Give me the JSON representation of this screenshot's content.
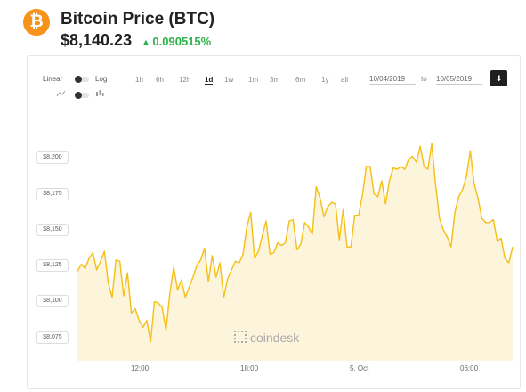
{
  "header": {
    "logo_glyph": "₿",
    "title": "Bitcoin Price (BTC)",
    "price": "$8,140.23",
    "change_arrow": "▲",
    "change": "0.090515%",
    "change_color": "#2db34a",
    "brand_color": "#f7931a"
  },
  "controls": {
    "scale_linear": "Linear",
    "scale_log": "Log",
    "ranges": [
      "1h",
      "6h",
      "12h",
      "1d",
      "1w",
      "1m",
      "3m",
      "6m",
      "1y",
      "all"
    ],
    "active_range": "1d",
    "date_from": "10/04/2019",
    "to_label": "to",
    "date_to": "10/05/2019",
    "download_icon": "download-icon"
  },
  "chart_data": {
    "type": "area",
    "line_color": "#f4c21f",
    "fill_color": "#fdf4dc",
    "y_ticks": [
      "$8,075",
      "$8,100",
      "$8,125",
      "$8,150",
      "$8,175",
      "$8,200"
    ],
    "x_ticks": [
      "12:00",
      "18:00",
      "5. Oct",
      "06:00"
    ],
    "ylim": [
      8060,
      8215
    ],
    "values": [
      8121,
      8126,
      8123,
      8130,
      8134,
      8122,
      8128,
      8135,
      8113,
      8103,
      8129,
      8128,
      8104,
      8120,
      8092,
      8095,
      8087,
      8082,
      8087,
      8072,
      8100,
      8099,
      8096,
      8080,
      8106,
      8124,
      8108,
      8115,
      8103,
      8110,
      8117,
      8125,
      8129,
      8137,
      8114,
      8132,
      8117,
      8127,
      8103,
      8116,
      8122,
      8128,
      8127,
      8133,
      8152,
      8162,
      8130,
      8135,
      8146,
      8156,
      8133,
      8134,
      8141,
      8139,
      8141,
      8156,
      8157,
      8136,
      8140,
      8155,
      8152,
      8147,
      8180,
      8172,
      8159,
      8166,
      8169,
      8168,
      8143,
      8164,
      8138,
      8138,
      8160,
      8160,
      8174,
      8194,
      8194,
      8175,
      8173,
      8184,
      8168,
      8184,
      8193,
      8192,
      8194,
      8192,
      8199,
      8201,
      8197,
      8208,
      8194,
      8192,
      8210,
      8181,
      8158,
      8150,
      8145,
      8138,
      8162,
      8173,
      8178,
      8187,
      8205,
      8182,
      8172,
      8158,
      8155,
      8155,
      8157,
      8142,
      8144,
      8130,
      8127,
      8138
    ],
    "watermark": "coindesk"
  }
}
